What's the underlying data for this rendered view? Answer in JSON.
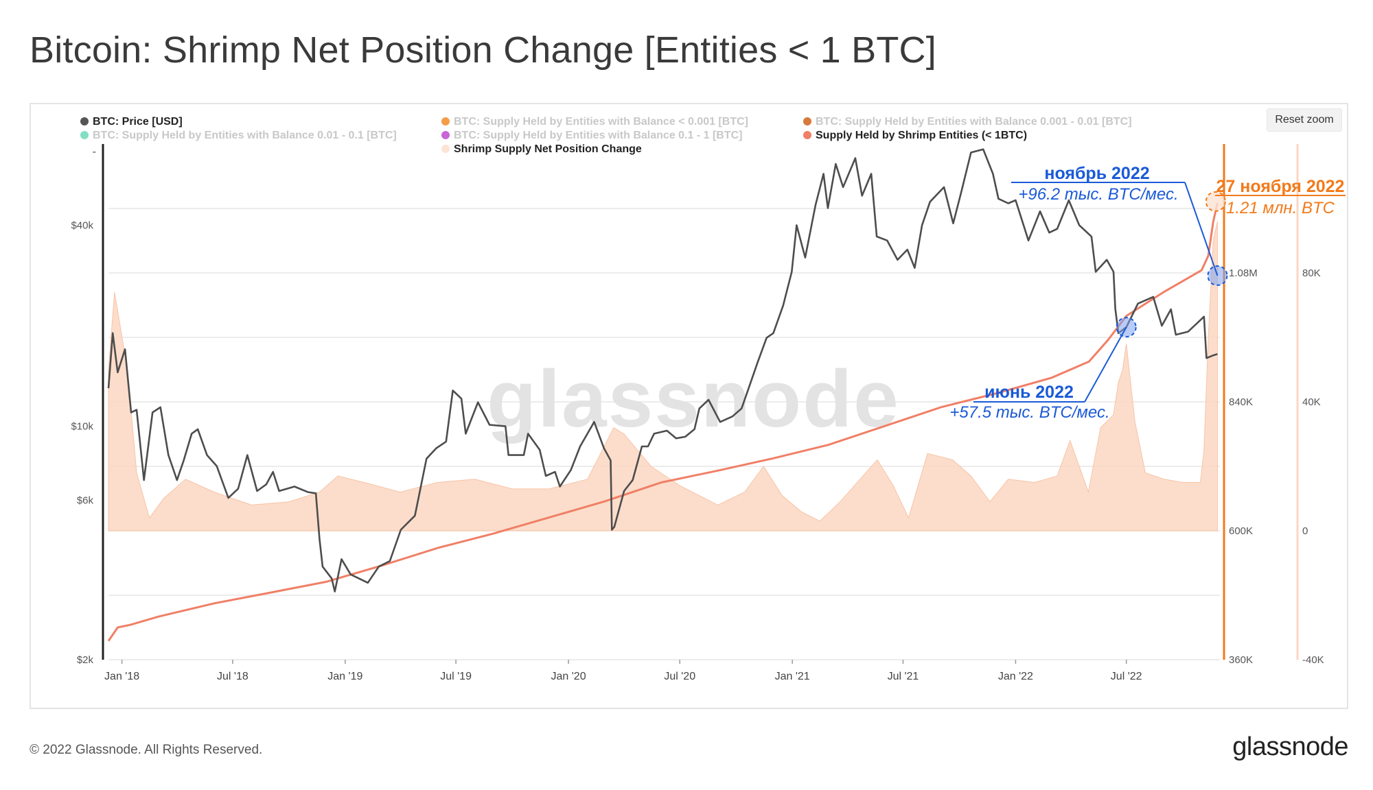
{
  "title": "Bitcoin: Shrimp Net Position Change [Entities < 1 BTC]",
  "reset_zoom_label": "Reset zoom",
  "legend": [
    {
      "label": "BTC: Price [USD]",
      "color": "#555555",
      "active": true
    },
    {
      "label": "BTC: Supply Held by Entities with Balance < 0.001 [BTC]",
      "color": "#f28c28",
      "active": false
    },
    {
      "label": "BTC: Supply Held by Entities with Balance 0.001 - 0.01 [BTC]",
      "color": "#d0621a",
      "active": false
    },
    {
      "label": "BTC: Supply Held by Entities with Balance 0.01 - 0.1 [BTC]",
      "color": "#6dd9b8",
      "active": false
    },
    {
      "label": "BTC: Supply Held by Entities with Balance 0.1 - 1 [BTC]",
      "color": "#c04ad0",
      "active": false
    },
    {
      "label": "Supply Held by Shrimp Entities (< 1BTC)",
      "color": "#f07f66",
      "active": true
    },
    {
      "label": "Shrimp Supply Net Position Change",
      "color": "#fde3d3",
      "active": true
    }
  ],
  "chart_data": {
    "type": "line",
    "x_tick_labels": [
      "Jan '18",
      "Jul '18",
      "Jan '19",
      "Jul '19",
      "Jan '20",
      "Jul '20",
      "Jan '21",
      "Jul '21",
      "Jan '22",
      "Jul '22"
    ],
    "x_ticks": [
      "2018-01-01",
      "2018-07-01",
      "2019-01-01",
      "2019-07-01",
      "2020-01-01",
      "2020-07-01",
      "2021-01-01",
      "2021-07-01",
      "2022-01-01",
      "2022-07-01"
    ],
    "x_range": [
      "2017-12-10",
      "2022-12-01"
    ],
    "price_axis": {
      "scale": "log",
      "range": [
        2000,
        70000
      ],
      "tick_labels": [
        "$2k",
        "$6k",
        "$10k",
        "$40k"
      ],
      "ticks": [
        2000,
        6000,
        10000,
        40000
      ],
      "top_label": "-"
    },
    "supply_axis": {
      "range": [
        360000,
        1320000
      ],
      "tick_labels": [
        "360K",
        "600K",
        "840K",
        "1.08M"
      ],
      "ticks": [
        360000,
        600000,
        840000,
        1080000
      ]
    },
    "change_axis": {
      "range": [
        -40000,
        120000
      ],
      "tick_labels": [
        "-40K",
        "0",
        "40K",
        "80K"
      ],
      "ticks": [
        -40000,
        0,
        40000,
        80000
      ]
    },
    "series": [
      {
        "name": "BTC: Price [USD]",
        "color": "#4d4d4d",
        "axis": "price",
        "points": [
          [
            "2017-12-10",
            13000
          ],
          [
            "2017-12-17",
            19000
          ],
          [
            "2017-12-25",
            14500
          ],
          [
            "2018-01-06",
            17000
          ],
          [
            "2018-01-16",
            11000
          ],
          [
            "2018-01-25",
            11200
          ],
          [
            "2018-02-06",
            6900
          ],
          [
            "2018-02-20",
            11000
          ],
          [
            "2018-03-05",
            11400
          ],
          [
            "2018-03-18",
            8200
          ],
          [
            "2018-04-01",
            6900
          ],
          [
            "2018-04-12",
            7900
          ],
          [
            "2018-04-25",
            9500
          ],
          [
            "2018-05-05",
            9800
          ],
          [
            "2018-05-20",
            8200
          ],
          [
            "2018-06-05",
            7600
          ],
          [
            "2018-06-24",
            6100
          ],
          [
            "2018-07-10",
            6500
          ],
          [
            "2018-07-25",
            8200
          ],
          [
            "2018-08-10",
            6400
          ],
          [
            "2018-08-25",
            6700
          ],
          [
            "2018-09-05",
            7300
          ],
          [
            "2018-09-15",
            6400
          ],
          [
            "2018-10-10",
            6600
          ],
          [
            "2018-11-01",
            6350
          ],
          [
            "2018-11-14",
            6300
          ],
          [
            "2018-11-20",
            4600
          ],
          [
            "2018-11-25",
            3800
          ],
          [
            "2018-12-10",
            3500
          ],
          [
            "2018-12-15",
            3200
          ],
          [
            "2018-12-26",
            4000
          ],
          [
            "2019-01-10",
            3600
          ],
          [
            "2019-02-07",
            3400
          ],
          [
            "2019-02-25",
            3800
          ],
          [
            "2019-03-15",
            3950
          ],
          [
            "2019-04-02",
            4900
          ],
          [
            "2019-04-25",
            5400
          ],
          [
            "2019-05-14",
            8000
          ],
          [
            "2019-05-30",
            8600
          ],
          [
            "2019-06-15",
            9000
          ],
          [
            "2019-06-26",
            12800
          ],
          [
            "2019-07-10",
            12100
          ],
          [
            "2019-07-17",
            9500
          ],
          [
            "2019-08-06",
            11800
          ],
          [
            "2019-08-25",
            10100
          ],
          [
            "2019-09-20",
            10000
          ],
          [
            "2019-09-25",
            8200
          ],
          [
            "2019-10-20",
            8200
          ],
          [
            "2019-10-27",
            9500
          ],
          [
            "2019-11-15",
            8500
          ],
          [
            "2019-11-25",
            7100
          ],
          [
            "2019-12-10",
            7300
          ],
          [
            "2019-12-18",
            6600
          ],
          [
            "2020-01-05",
            7400
          ],
          [
            "2020-01-20",
            8700
          ],
          [
            "2020-02-12",
            10300
          ],
          [
            "2020-02-28",
            8600
          ],
          [
            "2020-03-10",
            7900
          ],
          [
            "2020-03-12",
            4900
          ],
          [
            "2020-03-16",
            5000
          ],
          [
            "2020-04-01",
            6400
          ],
          [
            "2020-04-15",
            6900
          ],
          [
            "2020-04-30",
            8700
          ],
          [
            "2020-05-10",
            8700
          ],
          [
            "2020-05-20",
            9500
          ],
          [
            "2020-06-10",
            9700
          ],
          [
            "2020-06-25",
            9200
          ],
          [
            "2020-07-10",
            9300
          ],
          [
            "2020-07-25",
            9800
          ],
          [
            "2020-08-02",
            11300
          ],
          [
            "2020-08-17",
            12000
          ],
          [
            "2020-09-05",
            10300
          ],
          [
            "2020-09-25",
            10700
          ],
          [
            "2020-10-10",
            11300
          ],
          [
            "2020-10-21",
            12900
          ],
          [
            "2020-11-05",
            15500
          ],
          [
            "2020-11-20",
            18400
          ],
          [
            "2020-12-01",
            19000
          ],
          [
            "2020-12-17",
            23000
          ],
          [
            "2020-12-31",
            29000
          ],
          [
            "2021-01-08",
            40000
          ],
          [
            "2021-01-22",
            32000
          ],
          [
            "2021-02-08",
            46000
          ],
          [
            "2021-02-21",
            57000
          ],
          [
            "2021-02-28",
            45000
          ],
          [
            "2021-03-13",
            61000
          ],
          [
            "2021-03-25",
            52000
          ],
          [
            "2021-04-14",
            63500
          ],
          [
            "2021-04-25",
            49000
          ],
          [
            "2021-05-10",
            57000
          ],
          [
            "2021-05-19",
            37000
          ],
          [
            "2021-06-05",
            36000
          ],
          [
            "2021-06-22",
            31500
          ],
          [
            "2021-07-08",
            33800
          ],
          [
            "2021-07-20",
            29800
          ],
          [
            "2021-08-01",
            40000
          ],
          [
            "2021-08-14",
            47000
          ],
          [
            "2021-09-06",
            52000
          ],
          [
            "2021-09-21",
            40500
          ],
          [
            "2021-10-05",
            51000
          ],
          [
            "2021-10-20",
            66000
          ],
          [
            "2021-11-09",
            67500
          ],
          [
            "2021-11-25",
            57000
          ],
          [
            "2021-12-04",
            48000
          ],
          [
            "2021-12-20",
            46500
          ],
          [
            "2022-01-01",
            47500
          ],
          [
            "2022-01-22",
            36000
          ],
          [
            "2022-02-10",
            44000
          ],
          [
            "2022-02-25",
            38000
          ],
          [
            "2022-03-10",
            39000
          ],
          [
            "2022-03-29",
            47500
          ],
          [
            "2022-04-15",
            40000
          ],
          [
            "2022-05-05",
            37000
          ],
          [
            "2022-05-12",
            29000
          ],
          [
            "2022-05-30",
            31500
          ],
          [
            "2022-06-10",
            29000
          ],
          [
            "2022-06-13",
            22500
          ],
          [
            "2022-06-18",
            19000
          ],
          [
            "2022-07-01",
            19800
          ],
          [
            "2022-07-20",
            23300
          ],
          [
            "2022-08-14",
            24400
          ],
          [
            "2022-08-28",
            20000
          ],
          [
            "2022-09-12",
            22400
          ],
          [
            "2022-09-20",
            18800
          ],
          [
            "2022-10-10",
            19200
          ],
          [
            "2022-10-29",
            20700
          ],
          [
            "2022-11-05",
            21300
          ],
          [
            "2022-11-09",
            16000
          ],
          [
            "2022-11-20",
            16300
          ],
          [
            "2022-11-27",
            16450
          ]
        ]
      },
      {
        "name": "Supply Held by Shrimp Entities (< 1BTC)",
        "color": "#f07f66",
        "axis": "supply",
        "points": [
          [
            "2017-12-10",
            395000
          ],
          [
            "2017-12-25",
            420000
          ],
          [
            "2018-01-15",
            425000
          ],
          [
            "2018-03-01",
            440000
          ],
          [
            "2018-06-01",
            465000
          ],
          [
            "2018-09-01",
            485000
          ],
          [
            "2018-12-01",
            505000
          ],
          [
            "2019-03-01",
            535000
          ],
          [
            "2019-06-01",
            568000
          ],
          [
            "2019-09-01",
            595000
          ],
          [
            "2019-12-01",
            625000
          ],
          [
            "2020-03-01",
            655000
          ],
          [
            "2020-06-01",
            690000
          ],
          [
            "2020-09-01",
            712000
          ],
          [
            "2020-12-01",
            735000
          ],
          [
            "2021-03-01",
            760000
          ],
          [
            "2021-06-01",
            795000
          ],
          [
            "2021-09-01",
            830000
          ],
          [
            "2021-12-01",
            856000
          ],
          [
            "2022-03-01",
            885000
          ],
          [
            "2022-05-01",
            915000
          ],
          [
            "2022-06-01",
            955000
          ],
          [
            "2022-07-01",
            1000000
          ],
          [
            "2022-09-01",
            1045000
          ],
          [
            "2022-11-01",
            1085000
          ],
          [
            "2022-11-12",
            1112000
          ],
          [
            "2022-11-20",
            1175000
          ],
          [
            "2022-11-27",
            1210000
          ]
        ]
      },
      {
        "name": "Shrimp Supply Net Position Change",
        "color": "#fbd7c2",
        "axis": "change",
        "points": [
          [
            "2017-12-10",
            50000
          ],
          [
            "2017-12-20",
            74000
          ],
          [
            "2018-01-10",
            50000
          ],
          [
            "2018-01-25",
            18000
          ],
          [
            "2018-02-15",
            4000
          ],
          [
            "2018-03-10",
            10000
          ],
          [
            "2018-04-15",
            16000
          ],
          [
            "2018-06-01",
            12000
          ],
          [
            "2018-08-01",
            8000
          ],
          [
            "2018-10-01",
            9000
          ],
          [
            "2018-11-20",
            12000
          ],
          [
            "2018-12-20",
            17000
          ],
          [
            "2019-02-01",
            15000
          ],
          [
            "2019-04-01",
            12000
          ],
          [
            "2019-06-01",
            15000
          ],
          [
            "2019-08-01",
            16000
          ],
          [
            "2019-10-01",
            13000
          ],
          [
            "2019-12-01",
            13000
          ],
          [
            "2020-02-01",
            16000
          ],
          [
            "2020-03-15",
            32000
          ],
          [
            "2020-04-01",
            30000
          ],
          [
            "2020-05-15",
            20000
          ],
          [
            "2020-07-01",
            14000
          ],
          [
            "2020-09-01",
            8000
          ],
          [
            "2020-10-15",
            12000
          ],
          [
            "2020-11-15",
            20000
          ],
          [
            "2020-12-15",
            11000
          ],
          [
            "2021-01-15",
            6000
          ],
          [
            "2021-02-15",
            3000
          ],
          [
            "2021-03-20",
            9000
          ],
          [
            "2021-05-01",
            18000
          ],
          [
            "2021-05-20",
            22000
          ],
          [
            "2021-06-15",
            14000
          ],
          [
            "2021-07-10",
            4000
          ],
          [
            "2021-08-10",
            24000
          ],
          [
            "2021-09-20",
            22000
          ],
          [
            "2021-10-20",
            17000
          ],
          [
            "2021-11-20",
            9000
          ],
          [
            "2021-12-20",
            16000
          ],
          [
            "2022-02-01",
            15000
          ],
          [
            "2022-03-10",
            17000
          ],
          [
            "2022-03-31",
            28000
          ],
          [
            "2022-04-30",
            12000
          ],
          [
            "2022-05-20",
            32000
          ],
          [
            "2022-06-10",
            36000
          ],
          [
            "2022-06-18",
            46000
          ],
          [
            "2022-06-25",
            50000
          ],
          [
            "2022-07-01",
            58000
          ],
          [
            "2022-07-15",
            34000
          ],
          [
            "2022-08-01",
            18000
          ],
          [
            "2022-09-01",
            16000
          ],
          [
            "2022-10-01",
            15000
          ],
          [
            "2022-10-30",
            15000
          ],
          [
            "2022-11-05",
            25000
          ],
          [
            "2022-11-12",
            60000
          ],
          [
            "2022-11-20",
            90000
          ],
          [
            "2022-11-27",
            96000
          ]
        ]
      }
    ],
    "annotations": [
      {
        "title": "ноябрь 2022",
        "text": "+96.2 тыс. BTC/мес.",
        "color": "#1a5ad7"
      },
      {
        "title": "июнь 2022",
        "text": "+57.5 тыс. BTC/мес.",
        "color": "#1a5ad7"
      },
      {
        "title": "27 ноября 2022",
        "text": "1.21 млн. BTC",
        "color": "#f27a1a"
      }
    ],
    "watermark": "glassnode",
    "grid": true
  },
  "footer": {
    "copyright": "© 2022 Glassnode. All Rights Reserved.",
    "logo": "glassnode"
  }
}
